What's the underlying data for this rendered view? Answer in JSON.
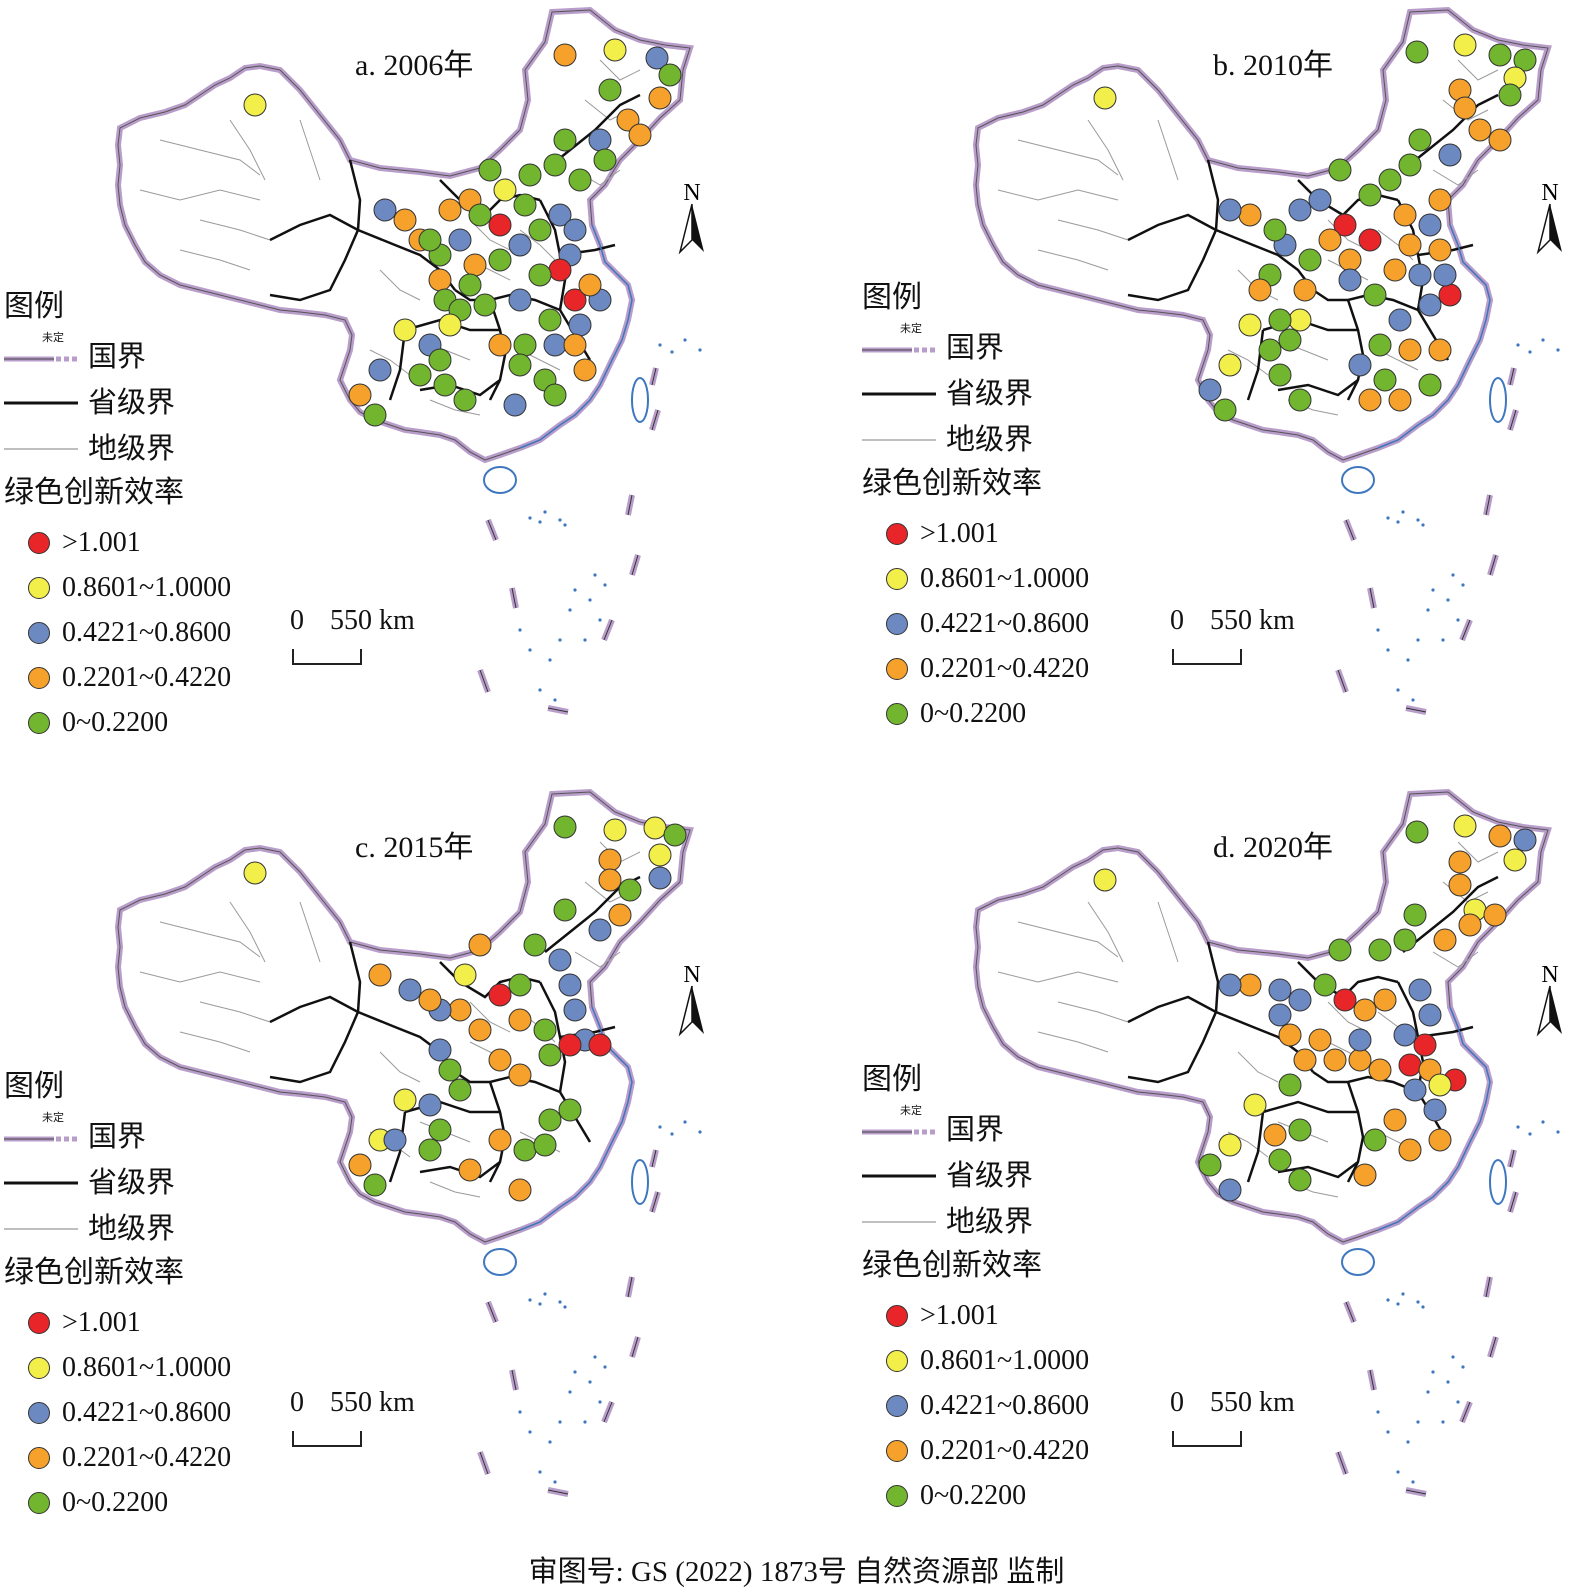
{
  "panels": [
    {
      "title": "a. 2006年",
      "legend_title": "图例"
    },
    {
      "title": "b. 2010年",
      "legend_title": "图例"
    },
    {
      "title": "c. 2015年",
      "legend_title": "图例"
    },
    {
      "title": "d. 2020年",
      "legend_title": "图例"
    }
  ],
  "legend": {
    "national_border": "国界",
    "undetermined": "未定",
    "provincial_border": "省级界",
    "prefecture_border": "地级界",
    "efficiency_title": "绿色创新效率",
    "classes": [
      {
        "label": ">1.001",
        "color": "#e8262a"
      },
      {
        "label": "0.8601~1.0000",
        "color": "#f2ee4a"
      },
      {
        "label": "0.4221~0.8600",
        "color": "#6d89c2"
      },
      {
        "label": "0.2201~0.4220",
        "color": "#f5a12c"
      },
      {
        "label": "0~0.2200",
        "color": "#71b62e"
      }
    ]
  },
  "scale": {
    "zero": "0",
    "distance": "550 km"
  },
  "north": {
    "label": "N",
    "icon": "north-arrow-icon"
  },
  "colors": {
    "border": "#b89cc9",
    "coast": "#3f77bf"
  },
  "footer": "审图号: GS (2022) 1873号    自然资源部 监制"
}
